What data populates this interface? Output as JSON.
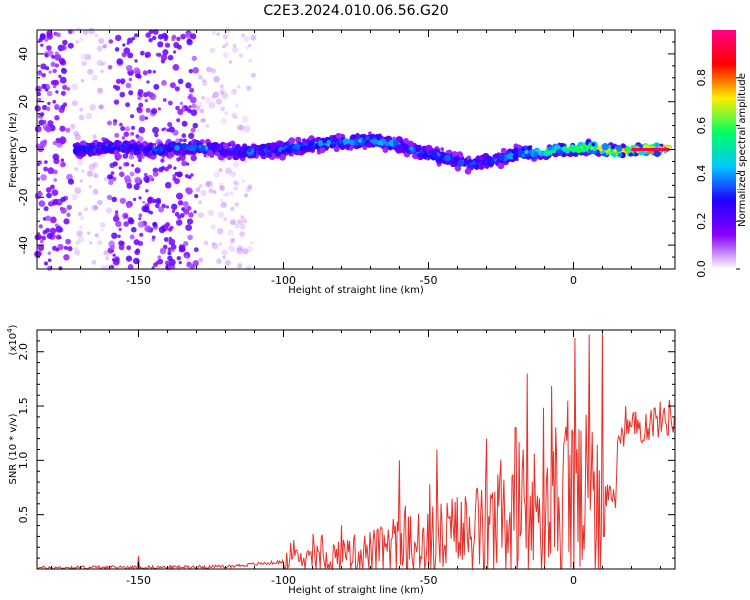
{
  "title": "C2E3.2024.010.06.56.G20",
  "chart_data": [
    {
      "type": "heatmap",
      "xlabel": "Height of straight line (km)",
      "ylabel": "Frequency (Hz)",
      "xlim": [
        -185,
        35
      ],
      "ylim": [
        -50,
        50
      ],
      "xticks": [
        -150,
        -100,
        -50,
        0
      ],
      "yticks": [
        -40,
        -20,
        0,
        20,
        40
      ],
      "colorbar": {
        "label": "Normalized spectral amplitude",
        "range": [
          0,
          1
        ],
        "ticks": [
          0.0,
          0.2,
          0.4,
          0.6,
          0.8
        ],
        "colormap": [
          "#ffffff",
          "#8800ff",
          "#2000ff",
          "#00c8ff",
          "#00ff60",
          "#ffee00",
          "#ff0000",
          "#ff0088"
        ]
      },
      "ridge": {
        "x": [
          -171,
          -160,
          -145,
          -130,
          -115,
          -100,
          -90,
          -80,
          -70,
          -60,
          -50,
          -45,
          -40,
          -35,
          -30,
          -25,
          -20,
          -15,
          -10,
          -5,
          0,
          5,
          10,
          15,
          20,
          25,
          30,
          33
        ],
        "y": [
          0,
          1,
          0,
          1,
          -1,
          0,
          2,
          3,
          4,
          2,
          -2,
          -3,
          -5,
          -6,
          -5,
          -4,
          -2,
          -1,
          -1,
          0,
          0,
          1,
          0,
          -1,
          0,
          0,
          0,
          0
        ],
        "amplitude": [
          0.35,
          0.32,
          0.34,
          0.36,
          0.34,
          0.38,
          0.4,
          0.42,
          0.44,
          0.4,
          0.38,
          0.36,
          0.34,
          0.34,
          0.38,
          0.4,
          0.42,
          0.5,
          0.55,
          0.62,
          0.68,
          0.7,
          0.72,
          0.78,
          0.82,
          0.88,
          0.92,
          0.95
        ]
      }
    },
    {
      "type": "line",
      "xlabel": "Height of straight line (km)",
      "ylabel": "SNR (10 * v/v)",
      "ylabel_multiplier": "(x10^4)",
      "xlim": [
        -185,
        35
      ],
      "ylim": [
        0,
        2.2
      ],
      "xticks": [
        -150,
        -100,
        -50,
        0
      ],
      "yticks": [
        0.5,
        1.0,
        1.5,
        2.0
      ],
      "series": [
        {
          "color": "#e8302a",
          "envelope": {
            "x": [
              -185,
              -160,
              -140,
              -120,
              -110,
              -100,
              -90,
              -80,
              -70,
              -60,
              -50,
              -40,
              -30,
              -20,
              -15,
              -10,
              -5,
              0,
              5,
              8,
              10,
              15,
              20,
              25,
              30,
              35
            ],
            "y": [
              0.02,
              0.03,
              0.03,
              0.04,
              0.08,
              0.12,
              0.18,
              0.22,
              0.28,
              0.35,
              0.45,
              0.55,
              0.65,
              0.75,
              0.85,
              0.9,
              0.95,
              1.05,
              1.1,
              1.15,
              1.25,
              1.3,
              1.35,
              1.4,
              1.45,
              1.48
            ]
          },
          "peaks": [
            {
              "x": -150,
              "y": 0.12
            },
            {
              "x": -60,
              "y": 1.0
            },
            {
              "x": -47,
              "y": 1.1
            },
            {
              "x": -30,
              "y": 1.2
            },
            {
              "x": -20,
              "y": 1.3
            },
            {
              "x": -16,
              "y": 1.8
            },
            {
              "x": -2,
              "y": 1.55
            },
            {
              "x": 10,
              "y": 2.2
            },
            {
              "x": 18,
              "y": 1.5
            }
          ]
        }
      ]
    }
  ]
}
